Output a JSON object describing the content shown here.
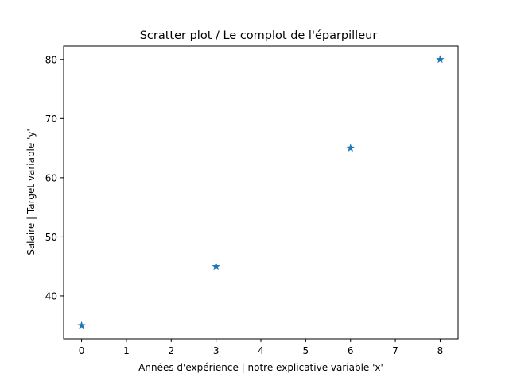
{
  "chart_data": {
    "type": "scatter",
    "title": "Scratter plot / Le complot de l'éparpilleur",
    "xlabel": "Années d'expérience | notre explicative variable 'x'",
    "ylabel": "Salaire | Target variable 'y'",
    "xlim": [
      -0.4,
      8.4
    ],
    "ylim": [
      32.75,
      82.25
    ],
    "xticks": [
      0,
      1,
      2,
      3,
      4,
      5,
      6,
      7,
      8
    ],
    "yticks": [
      40,
      50,
      60,
      70,
      80
    ],
    "grid": false,
    "marker": "star",
    "color": "#1f77b4",
    "points": [
      {
        "x": 0,
        "y": 35
      },
      {
        "x": 3,
        "y": 45
      },
      {
        "x": 6,
        "y": 65
      },
      {
        "x": 8,
        "y": 80
      }
    ]
  }
}
